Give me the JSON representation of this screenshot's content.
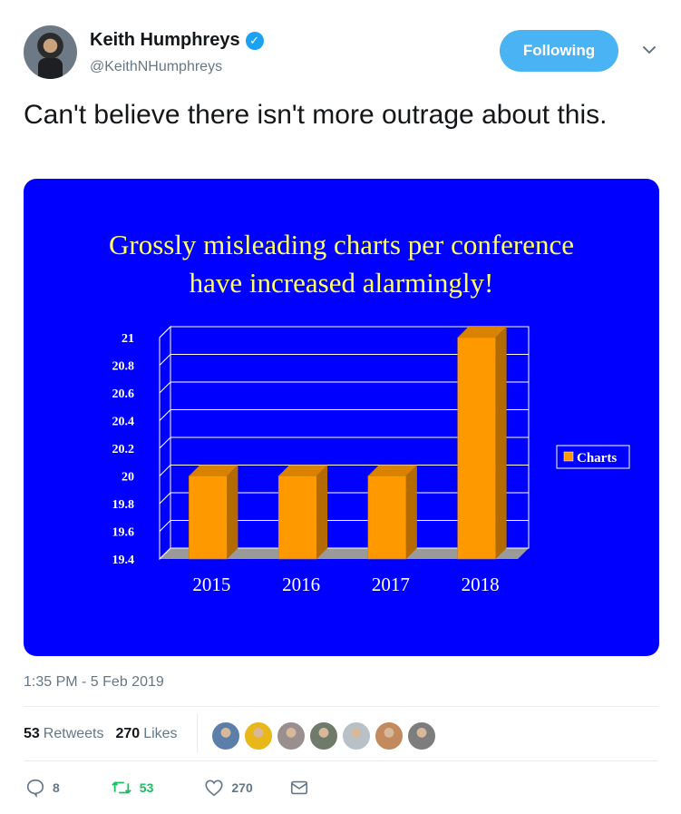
{
  "user": {
    "name": "Keith Humphreys",
    "handle": "@KeithNHumphreys",
    "follow_label": "Following"
  },
  "tweet": {
    "text": "Can't believe there isn't more outrage about this.",
    "timestamp": "1:35 PM - 5 Feb 2019"
  },
  "stats": {
    "retweets_count": "53",
    "retweets_label": "Retweets",
    "likes_count": "270",
    "likes_label": "Likes"
  },
  "actions": {
    "replies": "8",
    "retweets": "53",
    "likes": "270"
  },
  "likers": [
    {
      "icon": "avatar-1",
      "color": "#5b7fa8"
    },
    {
      "icon": "avatar-2",
      "color": "#e8b71a"
    },
    {
      "icon": "avatar-3",
      "color": "#9a8f8f"
    },
    {
      "icon": "avatar-4",
      "color": "#6f7a6b"
    },
    {
      "icon": "avatar-5",
      "color": "#b8c0c8"
    },
    {
      "icon": "avatar-6",
      "color": "#c28a5e"
    },
    {
      "icon": "avatar-7",
      "color": "#7d7d7d"
    }
  ],
  "colors": {
    "accent": "#1da1f2",
    "retweet_green": "#17bf63",
    "chart_bg": "#0000ff",
    "bar": "#ff9900",
    "title_yellow": "#ffff66"
  },
  "chart_data": {
    "type": "bar",
    "title_line1": "Grossly misleading charts per conference",
    "title_line2": "have increased alarmingly!",
    "categories": [
      "2015",
      "2016",
      "2017",
      "2018"
    ],
    "series": [
      {
        "name": "Charts",
        "values": [
          20,
          20,
          20,
          21
        ]
      }
    ],
    "ylim": [
      19.4,
      21
    ],
    "yticks": [
      "19.4",
      "19.6",
      "19.8",
      "20",
      "20.2",
      "20.4",
      "20.6",
      "20.8",
      "21"
    ],
    "legend": "right",
    "grid": true
  }
}
